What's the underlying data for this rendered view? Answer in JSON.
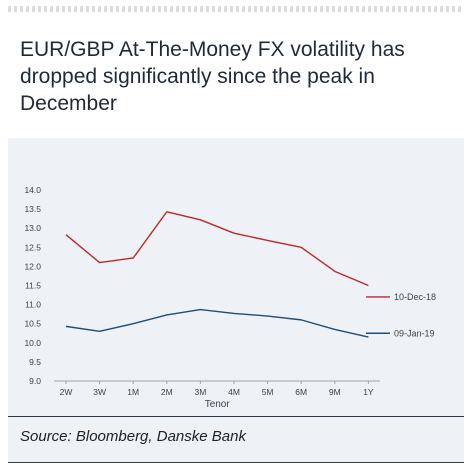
{
  "title": "EUR/GBP At-The-Money FX volatility has dropped significantly since the peak in December",
  "source": "Source: Bloomberg, Danske Bank",
  "colors": {
    "series_dec": "#c0272d",
    "series_jan": "#1f4e79",
    "panel": "#eef1f5",
    "grid": "#d7dbe0"
  },
  "chart_data": {
    "type": "line",
    "xlabel": "Tenor",
    "ylabel": "",
    "ylim": [
      9.0,
      14.0
    ],
    "yticks": [
      "9.0",
      "9.5",
      "10.0",
      "10.5",
      "11.0",
      "11.5",
      "12.0",
      "12.5",
      "13.0",
      "13.5",
      "14.0"
    ],
    "categories": [
      "2W",
      "3W",
      "1M",
      "2M",
      "3M",
      "4M",
      "5M",
      "6M",
      "9M",
      "1Y"
    ],
    "grid": false,
    "legend": "right, line-end labels",
    "series": [
      {
        "name": "10-Dec-18",
        "values": [
          12.83,
          12.1,
          12.22,
          13.43,
          13.22,
          12.87,
          12.68,
          12.5,
          11.87,
          11.5
        ]
      },
      {
        "name": "09-Jan-19",
        "values": [
          10.43,
          10.3,
          10.5,
          10.73,
          10.87,
          10.77,
          10.7,
          10.6,
          10.35,
          10.15
        ]
      }
    ]
  }
}
